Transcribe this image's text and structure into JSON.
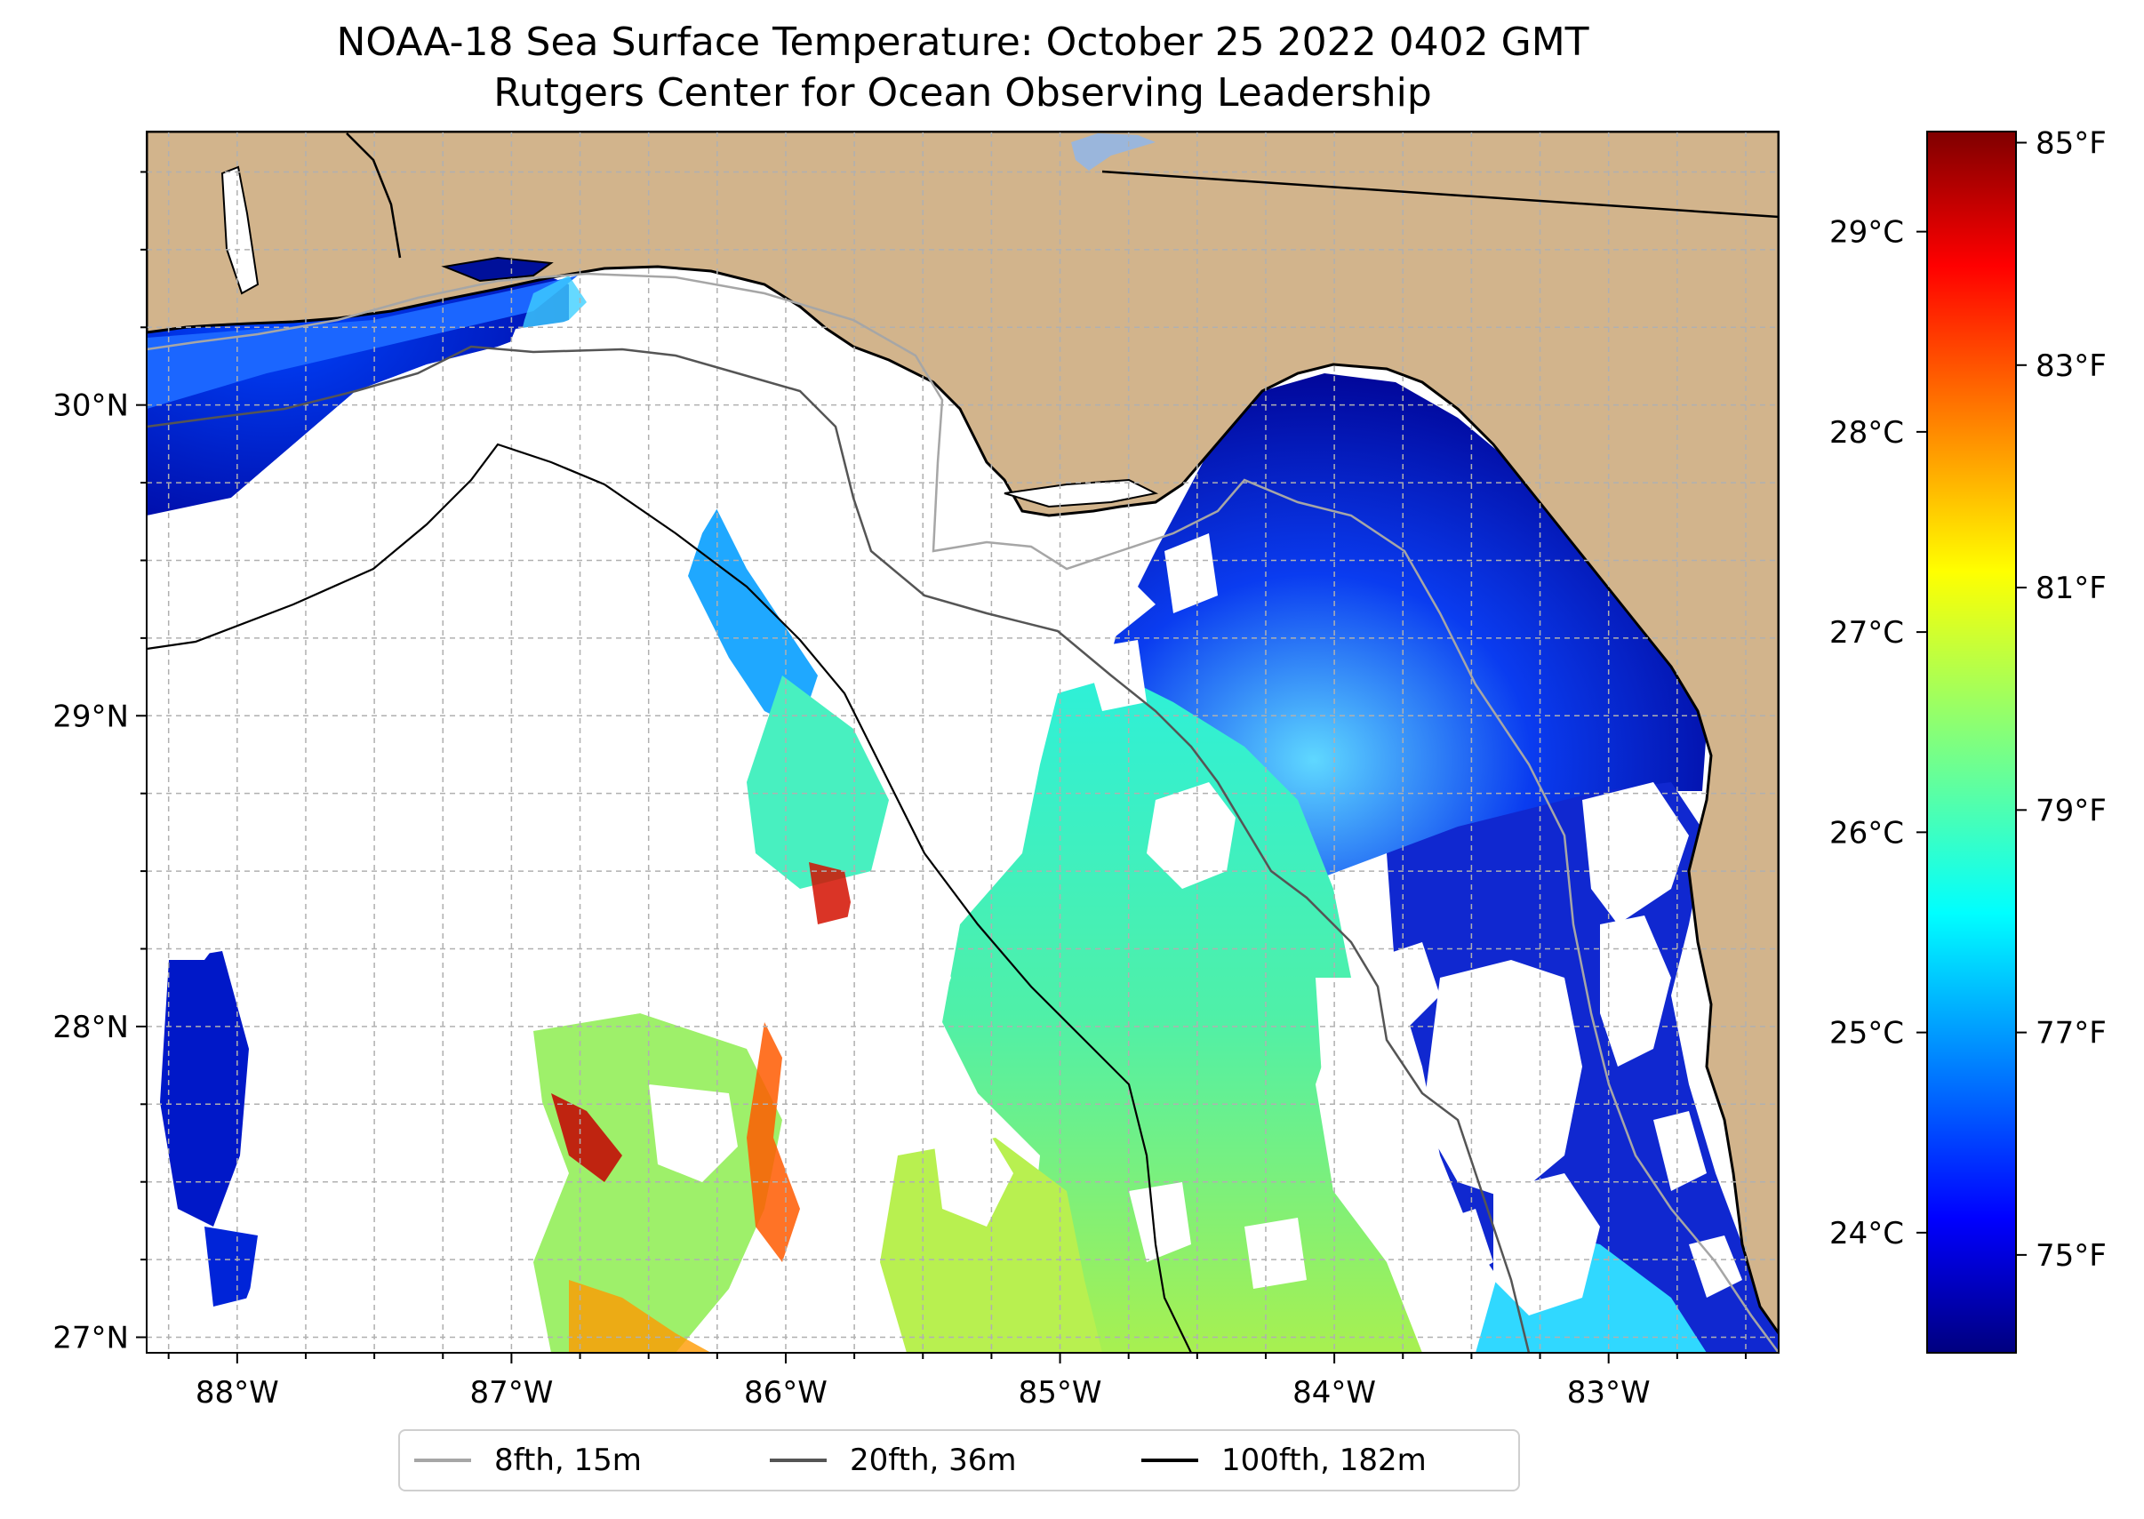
{
  "title": {
    "line1": "NOAA-18 Sea Surface Temperature: October 25 2022 0402 GMT",
    "line2": "Rutgers Center for Ocean Observing Leadership"
  },
  "colors": {
    "land": "#d2b48c",
    "lake": "#9ab6dc",
    "gridline": "#b0b0b0",
    "isobath_8fth": "#a6a6a6",
    "isobath_20fth": "#555555",
    "isobath_100fth": "#000000",
    "colormap": [
      "#00007f",
      "#0000ff",
      "#007fff",
      "#00ffff",
      "#7fff7f",
      "#ffff00",
      "#ff7f00",
      "#ff0000",
      "#7f0000"
    ]
  },
  "chart_data": {
    "type": "heatmap",
    "title": "NOAA-18 Sea Surface Temperature: October 25 2022 0402 GMT",
    "subtitle": "Rutgers Center for Ocean Observing Leadership",
    "variable": "Sea Surface Temperature",
    "lon_range": [
      -88.33,
      -82.38
    ],
    "lat_range": [
      26.95,
      30.88
    ],
    "x_ticks": [
      {
        "value": -88,
        "label": "88°W"
      },
      {
        "value": -87,
        "label": "87°W"
      },
      {
        "value": -86,
        "label": "86°W"
      },
      {
        "value": -85,
        "label": "85°W"
      },
      {
        "value": -84,
        "label": "84°W"
      },
      {
        "value": -83,
        "label": "83°W"
      }
    ],
    "y_ticks": [
      {
        "value": 27,
        "label": "27°N"
      },
      {
        "value": 28,
        "label": "28°N"
      },
      {
        "value": 29,
        "label": "29°N"
      },
      {
        "value": 30,
        "label": "30°N"
      }
    ],
    "grid": true,
    "colorbar": {
      "range_c": [
        23.4,
        29.5
      ],
      "celsius_ticks": [
        {
          "value": 24,
          "label": "24°C"
        },
        {
          "value": 25,
          "label": "25°C"
        },
        {
          "value": 26,
          "label": "26°C"
        },
        {
          "value": 27,
          "label": "27°C"
        },
        {
          "value": 28,
          "label": "28°C"
        },
        {
          "value": 29,
          "label": "29°C"
        }
      ],
      "fahrenheit_ticks": [
        {
          "value": 75,
          "label": "75°F"
        },
        {
          "value": 77,
          "label": "77°F"
        },
        {
          "value": 79,
          "label": "79°F"
        },
        {
          "value": 81,
          "label": "81°F"
        },
        {
          "value": 83,
          "label": "83°F"
        },
        {
          "value": 85,
          "label": "85°F"
        }
      ]
    },
    "legend": {
      "placement": "bottom-center",
      "entries": [
        {
          "label": "8fth, 15m",
          "color": "#a6a6a6"
        },
        {
          "label": "20fth, 36m",
          "color": "#555555"
        },
        {
          "label": "100fth, 182m",
          "color": "#000000"
        }
      ]
    }
  }
}
